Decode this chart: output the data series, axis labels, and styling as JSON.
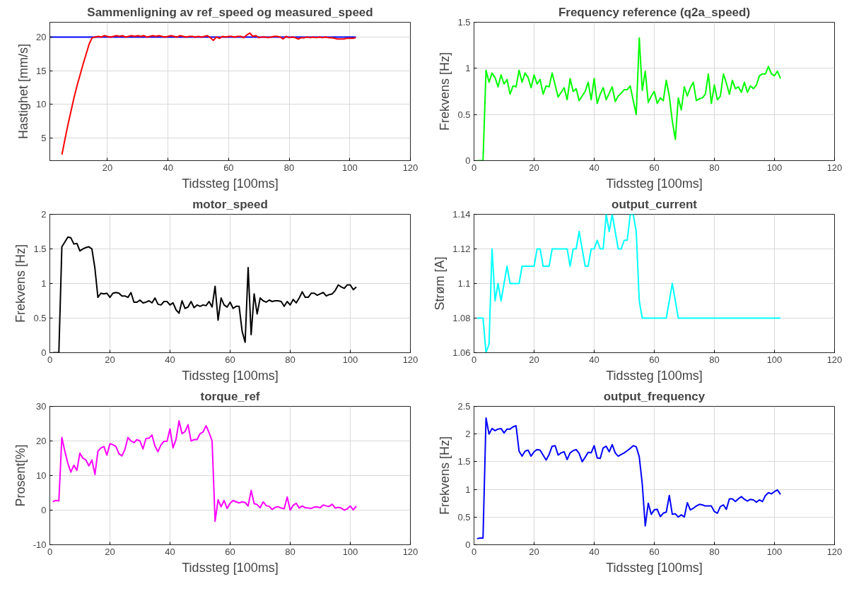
{
  "chart_data": [
    {
      "type": "line",
      "title": "Sammenligning av ref_speed og measured_speed",
      "xlabel": "Tidssteg [100ms]",
      "ylabel": "Hastighet [mm/s]",
      "xlim": [
        1,
        120
      ],
      "xticks": [
        20,
        40,
        60,
        80,
        100,
        120
      ],
      "ylim": [
        1.6,
        22.2
      ],
      "yticks": [
        5,
        10,
        15,
        20
      ],
      "grid": true,
      "x": [
        1,
        2,
        3,
        4,
        5,
        6,
        7,
        8,
        9,
        10,
        11,
        12,
        13,
        14,
        15,
        16,
        17,
        18,
        19,
        20,
        21,
        22,
        23,
        24,
        25,
        26,
        27,
        28,
        29,
        30,
        31,
        32,
        33,
        34,
        35,
        36,
        37,
        38,
        39,
        40,
        41,
        42,
        43,
        44,
        45,
        46,
        47,
        48,
        49,
        50,
        51,
        52,
        53,
        54,
        55,
        56,
        57,
        58,
        59,
        60,
        61,
        62,
        63,
        64,
        65,
        66,
        67,
        68,
        69,
        70,
        71,
        72,
        73,
        74,
        75,
        76,
        77,
        78,
        79,
        80,
        81,
        82,
        83,
        84,
        85,
        86,
        87,
        88,
        89,
        90,
        91,
        92,
        93,
        94,
        95,
        96,
        97,
        98,
        99,
        100,
        101,
        102
      ],
      "series": [
        {
          "color": "#0000ff",
          "values": [
            20,
            20,
            20,
            20,
            20,
            20,
            20,
            20,
            20,
            20,
            20,
            20,
            20,
            20,
            20,
            20,
            20,
            20,
            20,
            20,
            20,
            20,
            20,
            20,
            20,
            20,
            20,
            20,
            20,
            20,
            20,
            20,
            20,
            20,
            20,
            20,
            20,
            20,
            20,
            20,
            20,
            20,
            20,
            20,
            20,
            20,
            20,
            20,
            20,
            20,
            20,
            20,
            20,
            20,
            20,
            20,
            20,
            20,
            20,
            20,
            20,
            20,
            20,
            20,
            20,
            20,
            20,
            20,
            20,
            20,
            20,
            20,
            20,
            20,
            20,
            20,
            20,
            20,
            20,
            20,
            20,
            20,
            20,
            20,
            20,
            20,
            20,
            20,
            20,
            20,
            20,
            20,
            20,
            20,
            20,
            20,
            20,
            20,
            20,
            20,
            20,
            20
          ]
        },
        {
          "color": "#ff0000",
          "values": [
            null,
            null,
            null,
            null,
            2.5,
            4.8,
            7.0,
            9.0,
            11.0,
            12.8,
            14.4,
            16.0,
            17.5,
            19.0,
            19.9,
            20.0,
            20.1,
            20.0,
            20.2,
            20.1,
            20.0,
            20.1,
            20.2,
            20.1,
            20.2,
            20.0,
            20.1,
            20.2,
            20.1,
            20.2,
            20.1,
            20.2,
            20.0,
            20.1,
            20.2,
            20.1,
            20.2,
            20.1,
            20.0,
            20.1,
            20.2,
            20.1,
            20.0,
            20.2,
            20.1,
            20.0,
            20.1,
            20.1,
            20.0,
            20.1,
            20.0,
            20.1,
            20.2,
            19.9,
            19.5,
            20.0,
            19.8,
            20.1,
            20.0,
            20.1,
            20.1,
            20.0,
            20.1,
            20.1,
            19.9,
            20.3,
            20.6,
            20.1,
            20.2,
            19.9,
            20.0,
            20.0,
            19.9,
            20.0,
            20.1,
            20.1,
            20.0,
            19.7,
            20.1,
            19.9,
            20.0,
            19.9,
            19.7,
            19.9,
            19.9,
            20.0,
            19.9,
            20.0,
            19.9,
            20.0,
            19.9,
            20.0,
            19.9,
            19.9,
            19.8,
            19.7,
            19.7,
            19.7,
            19.8,
            19.8,
            19.8,
            19.9
          ]
        }
      ]
    },
    {
      "type": "line",
      "title": "Frequency reference (q2a_speed)",
      "xlabel": "Tidssteg [100ms]",
      "ylabel": "Frekvens [Hz]",
      "xlim": [
        0,
        120
      ],
      "xticks": [
        0,
        20,
        40,
        60,
        80,
        100,
        120
      ],
      "ylim": [
        0,
        1.5
      ],
      "yticks": [
        0,
        0.5,
        1,
        1.5
      ],
      "grid": true,
      "x": [
        1,
        2,
        3,
        4,
        5,
        6,
        7,
        8,
        9,
        10,
        11,
        12,
        13,
        14,
        15,
        16,
        17,
        18,
        19,
        20,
        21,
        22,
        23,
        24,
        25,
        26,
        27,
        28,
        29,
        30,
        31,
        32,
        33,
        34,
        35,
        36,
        37,
        38,
        39,
        40,
        41,
        42,
        43,
        44,
        45,
        46,
        47,
        48,
        49,
        50,
        51,
        52,
        53,
        54,
        55,
        56,
        57,
        58,
        59,
        60,
        61,
        62,
        63,
        64,
        65,
        66,
        67,
        68,
        69,
        70,
        71,
        72,
        73,
        74,
        75,
        76,
        77,
        78,
        79,
        80,
        81,
        82,
        83,
        84,
        85,
        86,
        87,
        88,
        89,
        90,
        91,
        92,
        93,
        94,
        95,
        96,
        97,
        98,
        99,
        100,
        101,
        102
      ],
      "series": [
        {
          "color": "#00ff00",
          "values": [
            0,
            0,
            0,
            0.98,
            0.85,
            0.95,
            0.9,
            0.8,
            0.93,
            0.83,
            0.88,
            0.72,
            0.81,
            0.8,
            0.98,
            0.85,
            0.95,
            0.9,
            0.79,
            0.93,
            0.83,
            0.88,
            0.72,
            0.81,
            0.8,
            0.95,
            0.82,
            0.69,
            0.74,
            0.79,
            0.66,
            0.89,
            0.75,
            0.78,
            0.65,
            0.7,
            0.75,
            0.85,
            0.66,
            0.89,
            0.62,
            0.72,
            0.79,
            0.66,
            0.73,
            0.8,
            0.64,
            0.7,
            0.73,
            0.77,
            0.77,
            0.81,
            0.65,
            0.5,
            1.33,
            0.76,
            0.97,
            0.63,
            0.7,
            0.75,
            0.62,
            0.68,
            0.65,
            0.87,
            0.7,
            0.43,
            0.23,
            0.68,
            0.55,
            0.8,
            0.7,
            0.79,
            0.85,
            0.65,
            0.67,
            0.68,
            0.72,
            0.94,
            0.62,
            0.82,
            0.66,
            0.7,
            0.94,
            0.84,
            0.72,
            0.87,
            0.78,
            0.8,
            0.74,
            0.85,
            0.74,
            0.81,
            0.78,
            0.82,
            0.92,
            0.94,
            0.94,
            1.02,
            0.94,
            0.92,
            0.97,
            0.89
          ]
        }
      ]
    },
    {
      "type": "line",
      "title": "motor_speed",
      "xlabel": "Tidssteg [100ms]",
      "ylabel": "Frekvens [Hz]",
      "xlim": [
        0,
        120
      ],
      "xticks": [
        0,
        20,
        40,
        60,
        80,
        100,
        120
      ],
      "ylim": [
        0,
        2
      ],
      "yticks": [
        0,
        0.5,
        1,
        1.5,
        2
      ],
      "grid": true,
      "x": [
        1,
        2,
        3,
        4,
        5,
        6,
        7,
        8,
        9,
        10,
        11,
        12,
        13,
        14,
        15,
        16,
        17,
        18,
        19,
        20,
        21,
        22,
        23,
        24,
        25,
        26,
        27,
        28,
        29,
        30,
        31,
        32,
        33,
        34,
        35,
        36,
        37,
        38,
        39,
        40,
        41,
        42,
        43,
        44,
        45,
        46,
        47,
        48,
        49,
        50,
        51,
        52,
        53,
        54,
        55,
        56,
        57,
        58,
        59,
        60,
        61,
        62,
        63,
        64,
        65,
        66,
        67,
        68,
        69,
        70,
        71,
        72,
        73,
        74,
        75,
        76,
        77,
        78,
        79,
        80,
        81,
        82,
        83,
        84,
        85,
        86,
        87,
        88,
        89,
        90,
        91,
        92,
        93,
        94,
        95,
        96,
        97,
        98,
        99,
        100,
        101,
        102
      ],
      "series": [
        {
          "color": "#000000",
          "values": [
            0,
            0,
            0,
            1.53,
            1.6,
            1.67,
            1.66,
            1.57,
            1.58,
            1.47,
            1.5,
            1.52,
            1.53,
            1.5,
            1.22,
            0.8,
            0.86,
            0.85,
            0.86,
            0.8,
            0.86,
            0.87,
            0.86,
            0.82,
            0.82,
            0.8,
            0.87,
            0.73,
            0.73,
            0.76,
            0.72,
            0.73,
            0.75,
            0.72,
            0.79,
            0.7,
            0.69,
            0.74,
            0.74,
            0.69,
            0.72,
            0.62,
            0.57,
            0.75,
            0.64,
            0.66,
            0.74,
            0.65,
            0.69,
            0.67,
            0.69,
            0.68,
            0.74,
            0.66,
            0.96,
            0.47,
            0.79,
            0.69,
            0.66,
            0.73,
            0.64,
            0.67,
            0.67,
            0.31,
            0.15,
            1.23,
            0.26,
            0.85,
            0.56,
            0.79,
            0.75,
            0.73,
            0.76,
            0.74,
            0.75,
            0.75,
            0.74,
            0.67,
            0.74,
            0.69,
            0.77,
            0.72,
            0.79,
            0.88,
            0.8,
            0.8,
            0.86,
            0.86,
            0.83,
            0.85,
            0.87,
            0.82,
            0.84,
            0.85,
            0.9,
            0.98,
            0.95,
            0.93,
            0.98,
            0.98,
            0.91,
            0.95
          ]
        }
      ]
    },
    {
      "type": "line",
      "title": "output_current",
      "xlabel": "Tidssteg [100ms]",
      "ylabel": "Strøm [A]",
      "xlim": [
        0,
        120
      ],
      "xticks": [
        0,
        20,
        40,
        60,
        80,
        100,
        120
      ],
      "ylim": [
        1.06,
        1.14
      ],
      "yticks": [
        1.06,
        1.08,
        1.1,
        1.12,
        1.14
      ],
      "grid": true,
      "x": [
        1,
        2,
        3,
        4,
        5,
        6,
        7,
        8,
        9,
        10,
        11,
        12,
        13,
        14,
        15,
        16,
        17,
        18,
        19,
        20,
        21,
        22,
        23,
        24,
        25,
        26,
        27,
        28,
        29,
        30,
        31,
        32,
        33,
        34,
        35,
        36,
        37,
        38,
        39,
        40,
        41,
        42,
        43,
        44,
        45,
        46,
        47,
        48,
        49,
        50,
        51,
        52,
        53,
        54,
        55,
        56,
        57,
        58,
        59,
        60,
        61,
        62,
        63,
        64,
        65,
        66,
        67,
        68,
        69,
        70,
        71,
        72,
        73,
        74,
        75,
        76,
        77,
        78,
        79,
        80,
        81,
        82,
        83,
        84,
        85,
        86,
        87,
        88,
        89,
        90,
        91,
        92,
        93,
        94,
        95,
        96,
        97,
        98,
        99,
        100,
        101,
        102
      ],
      "series": [
        {
          "color": "#00ffff",
          "values": [
            1.08,
            1.08,
            1.08,
            1.06,
            1.065,
            1.12,
            1.09,
            1.1,
            1.09,
            1.1,
            1.11,
            1.1,
            1.1,
            1.1,
            1.1,
            1.11,
            1.11,
            1.11,
            1.11,
            1.11,
            1.12,
            1.12,
            1.11,
            1.11,
            1.11,
            1.12,
            1.12,
            1.12,
            1.12,
            1.12,
            1.12,
            1.11,
            1.12,
            1.12,
            1.13,
            1.12,
            1.11,
            1.11,
            1.12,
            1.12,
            1.125,
            1.12,
            1.12,
            1.14,
            1.13,
            1.14,
            1.13,
            1.12,
            1.12,
            1.125,
            1.125,
            1.14,
            1.14,
            1.13,
            1.09,
            1.08,
            1.08,
            1.08,
            1.08,
            1.08,
            1.08,
            1.08,
            1.08,
            1.08,
            1.09,
            1.1,
            1.09,
            1.08,
            1.08,
            1.08,
            1.08,
            1.08,
            1.08,
            1.08,
            1.08,
            1.08,
            1.08,
            1.08,
            1.08,
            1.08,
            1.08,
            1.08,
            1.08,
            1.08,
            1.08,
            1.08,
            1.08,
            1.08,
            1.08,
            1.08,
            1.08,
            1.08,
            1.08,
            1.08,
            1.08,
            1.08,
            1.08,
            1.08,
            1.08,
            1.08,
            1.08,
            1.08
          ]
        }
      ]
    },
    {
      "type": "line",
      "title": "torque_ref",
      "xlabel": "Tidssteg [100ms]",
      "ylabel": "Prosent[%]",
      "xlim": [
        0,
        120
      ],
      "xticks": [
        0,
        20,
        40,
        60,
        80,
        100,
        120
      ],
      "ylim": [
        -10,
        30
      ],
      "yticks": [
        -10,
        0,
        10,
        20,
        30
      ],
      "grid": true,
      "x": [
        1,
        2,
        3,
        4,
        5,
        6,
        7,
        8,
        9,
        10,
        11,
        12,
        13,
        14,
        15,
        16,
        17,
        18,
        19,
        20,
        21,
        22,
        23,
        24,
        25,
        26,
        27,
        28,
        29,
        30,
        31,
        32,
        33,
        34,
        35,
        36,
        37,
        38,
        39,
        40,
        41,
        42,
        43,
        44,
        45,
        46,
        47,
        48,
        49,
        50,
        51,
        52,
        53,
        54,
        55,
        56,
        57,
        58,
        59,
        60,
        61,
        62,
        63,
        64,
        65,
        66,
        67,
        68,
        69,
        70,
        71,
        72,
        73,
        74,
        75,
        76,
        77,
        78,
        79,
        80,
        81,
        82,
        83,
        84,
        85,
        86,
        87,
        88,
        89,
        90,
        91,
        92,
        93,
        94,
        95,
        96,
        97,
        98,
        99,
        100,
        101,
        102
      ],
      "series": [
        {
          "color": "#ff00ff",
          "values": [
            2.5,
            2.8,
            2.7,
            21,
            17,
            13.5,
            11,
            13,
            11.5,
            16.5,
            15,
            14.5,
            12.8,
            14.5,
            10.3,
            17,
            18,
            18.4,
            15.9,
            19.2,
            18.9,
            18.4,
            16.3,
            15.7,
            17.6,
            21,
            20,
            19.5,
            20.4,
            20,
            17.7,
            20.7,
            20.8,
            21.7,
            18.5,
            16.9,
            18.9,
            19.9,
            19.9,
            23.5,
            18,
            20.5,
            25.8,
            22.1,
            22.7,
            24.7,
            20,
            20.4,
            20.4,
            22.1,
            22.6,
            24.4,
            22.4,
            20,
            -3.2,
            3,
            1,
            2.8,
            0.5,
            2,
            2.8,
            2.4,
            2.1,
            2.4,
            2.2,
            1.2,
            5.7,
            1.9,
            1.6,
            0.7,
            2.4,
            1.3,
            1.1,
            0.2,
            0.8,
            1,
            0.6,
            0.4,
            3.8,
            0,
            1.4,
            2,
            0.6,
            1.2,
            0.7,
            0.6,
            0.5,
            0.9,
            0.9,
            0.7,
            1.5,
            1.2,
            1.1,
            1.7,
            0.6,
            0.8,
            0.6,
            0,
            0.4,
            1.2,
            0.1,
            1.2
          ]
        }
      ]
    },
    {
      "type": "line",
      "title": "output_frequency",
      "xlabel": "Tidssteg [100ms]",
      "ylabel": "Frekvens [Hz]",
      "xlim": [
        0,
        120
      ],
      "xticks": [
        0,
        20,
        40,
        60,
        80,
        100,
        120
      ],
      "ylim": [
        0,
        2.5
      ],
      "yticks": [
        0,
        0.5,
        1,
        1.5,
        2,
        2.5
      ],
      "grid": true,
      "x": [
        1,
        2,
        3,
        4,
        5,
        6,
        7,
        8,
        9,
        10,
        11,
        12,
        13,
        14,
        15,
        16,
        17,
        18,
        19,
        20,
        21,
        22,
        23,
        24,
        25,
        26,
        27,
        28,
        29,
        30,
        31,
        32,
        33,
        34,
        35,
        36,
        37,
        38,
        39,
        40,
        41,
        42,
        43,
        44,
        45,
        46,
        47,
        48,
        49,
        50,
        51,
        52,
        53,
        54,
        55,
        56,
        57,
        58,
        59,
        60,
        61,
        62,
        63,
        64,
        65,
        66,
        67,
        68,
        69,
        70,
        71,
        72,
        73,
        74,
        75,
        76,
        77,
        78,
        79,
        80,
        81,
        82,
        83,
        84,
        85,
        86,
        87,
        88,
        89,
        90,
        91,
        92,
        93,
        94,
        95,
        96,
        97,
        98,
        99,
        100,
        101,
        102
      ],
      "series": [
        {
          "color": "#0000ff",
          "values": [
            0.11,
            0.12,
            0.12,
            2.29,
            2.0,
            2.1,
            2.06,
            2.09,
            2.1,
            2.02,
            2.09,
            2.09,
            2.13,
            2.15,
            1.69,
            1.6,
            1.69,
            1.71,
            1.6,
            1.68,
            1.72,
            1.71,
            1.62,
            1.53,
            1.63,
            1.78,
            1.79,
            1.62,
            1.66,
            1.68,
            1.54,
            1.66,
            1.7,
            1.72,
            1.65,
            1.5,
            1.58,
            1.67,
            1.66,
            1.79,
            1.57,
            1.56,
            1.75,
            1.78,
            1.68,
            1.81,
            1.66,
            1.6,
            1.63,
            1.66,
            1.7,
            1.74,
            1.79,
            1.77,
            1.59,
            1.1,
            0.34,
            0.75,
            0.55,
            0.63,
            0.64,
            0.51,
            0.57,
            0.59,
            0.89,
            0.55,
            0.56,
            0.5,
            0.54,
            0.5,
            0.76,
            0.63,
            0.66,
            0.7,
            0.73,
            0.72,
            0.7,
            0.7,
            0.7,
            0.6,
            0.57,
            0.69,
            0.72,
            0.64,
            0.83,
            0.83,
            0.78,
            0.83,
            0.87,
            0.82,
            0.79,
            0.82,
            0.81,
            0.77,
            0.81,
            0.78,
            0.89,
            0.94,
            0.92,
            0.96,
            0.99,
            0.91
          ]
        }
      ]
    }
  ]
}
